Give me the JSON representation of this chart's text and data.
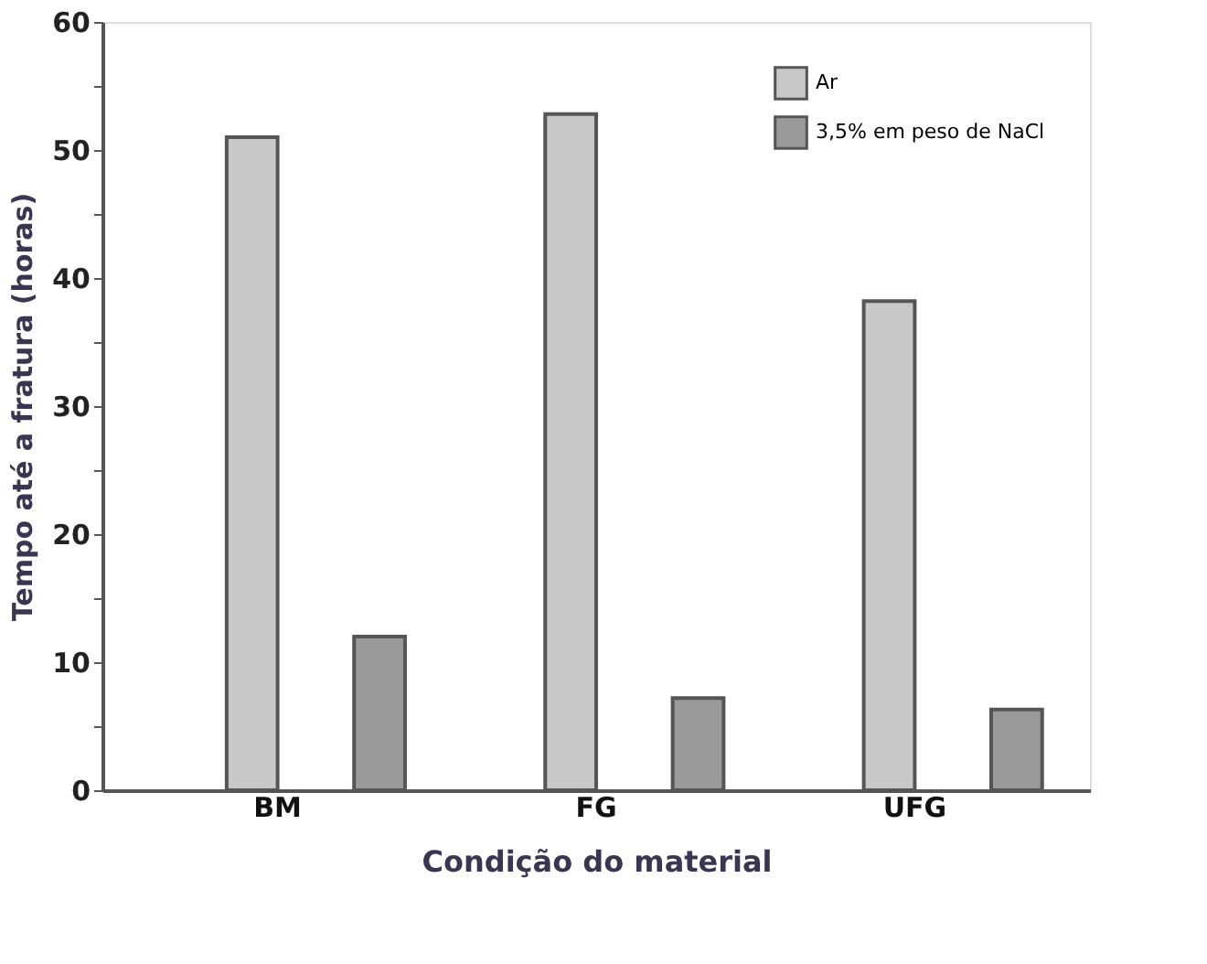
{
  "chart_data": {
    "type": "bar",
    "xlabel": "Condição do material",
    "ylabel": "Tempo até a fratura (horas)",
    "categories": [
      "BM",
      "FG",
      "UFG"
    ],
    "series": [
      {
        "name": "Ar",
        "color": "#c8c8c8",
        "values": [
          51,
          52.8,
          38.2
        ]
      },
      {
        "name": "3,5% em peso de NaCl",
        "color": "#9a9a9a",
        "values": [
          12,
          7.2,
          6.3
        ]
      }
    ],
    "ylim": [
      0,
      60
    ],
    "yticks": [
      0,
      {
        "value": 5,
        "label": null
      },
      10,
      {
        "value": 15,
        "label": null
      },
      20,
      {
        "value": 25,
        "label": null
      },
      30,
      {
        "value": 35,
        "label": null
      },
      40,
      {
        "value": 45,
        "label": null
      },
      50,
      {
        "value": 55,
        "label": null
      },
      60
    ],
    "grid": false,
    "legend": "top right"
  }
}
